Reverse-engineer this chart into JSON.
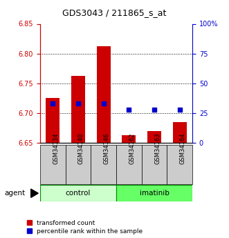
{
  "title": "GDS3043 / 211865_s_at",
  "categories": [
    "GSM34134",
    "GSM34140",
    "GSM34146",
    "GSM34162",
    "GSM34163",
    "GSM34164"
  ],
  "groups": [
    "control",
    "control",
    "control",
    "imatinib",
    "imatinib",
    "imatinib"
  ],
  "bar_values": [
    6.725,
    6.763,
    6.812,
    6.663,
    6.67,
    6.685
  ],
  "bar_base": 6.65,
  "percentile_values": [
    6.716,
    6.716,
    6.716,
    6.706,
    6.706,
    6.706
  ],
  "ylim": [
    6.65,
    6.85
  ],
  "yticks": [
    6.65,
    6.7,
    6.75,
    6.8,
    6.85
  ],
  "right_yticks": [
    0,
    25,
    50,
    75,
    100
  ],
  "right_ylabels": [
    "0",
    "25",
    "50",
    "75",
    "100%"
  ],
  "bar_color": "#cc0000",
  "dot_color": "#0000cc",
  "control_color": "#ccffcc",
  "imatinib_color": "#66ff66",
  "legend_bar": "transformed count",
  "legend_dot": "percentile rank within the sample",
  "bar_width": 0.55,
  "dot_size": 25,
  "tick_color_left": "#cc0000",
  "tick_color_right": "#0000cc",
  "grid_lines": [
    6.7,
    6.75,
    6.8
  ],
  "cat_box_color": "#cccccc",
  "agent_text": "agent"
}
